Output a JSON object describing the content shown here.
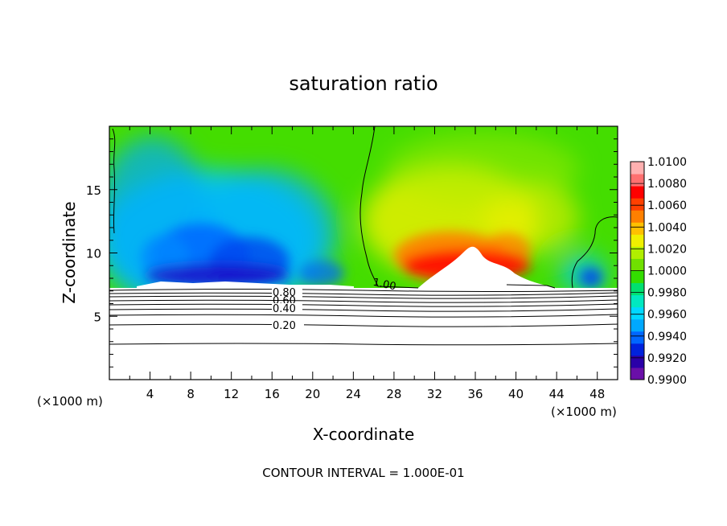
{
  "chart_data": {
    "type": "heatmap",
    "title": "saturation ratio",
    "xlabel": "X-coordinate",
    "ylabel": "Z-coordinate",
    "x_unit": "(×1000 m)",
    "x_unit_right": "(×1000 m)",
    "xlim": [
      0,
      50
    ],
    "ylim": [
      0,
      20
    ],
    "x_ticks": [
      "4",
      "8",
      "12",
      "16",
      "20",
      "24",
      "28",
      "32",
      "36",
      "40",
      "44",
      "48"
    ],
    "y_ticks": [
      "5",
      "10",
      "15"
    ],
    "footer": "CONTOUR INTERVAL = 1.000E-01",
    "colorbar": {
      "labels": [
        "1.0100",
        "1.0080",
        "1.0060",
        "1.0040",
        "1.0020",
        "1.0000",
        "0.9980",
        "0.9960",
        "0.9940",
        "0.9920",
        "0.9900"
      ],
      "min": 0.99,
      "max": 1.01,
      "colors": [
        "#6a0fa8",
        "#2a00a8",
        "#0022dd",
        "#0066ff",
        "#00a8ff",
        "#00d8ff",
        "#00e8c0",
        "#00e070",
        "#33dd00",
        "#70e000",
        "#b0ee00",
        "#f0f000",
        "#ffc000",
        "#ff8000",
        "#ff4000",
        "#ff0000",
        "#ff7070",
        "#ffb0b0"
      ]
    },
    "contour_labels": [
      {
        "text": "1.00",
        "x": 27.5,
        "z": 7.4
      },
      {
        "text": "0.80",
        "x": 17.5,
        "z": 6.9
      },
      {
        "text": "0.60",
        "x": 17.5,
        "z": 6.35
      },
      {
        "text": "0.40",
        "x": 17.5,
        "z": 5.65
      },
      {
        "text": "0.20",
        "x": 17.5,
        "z": 4.35
      }
    ]
  }
}
